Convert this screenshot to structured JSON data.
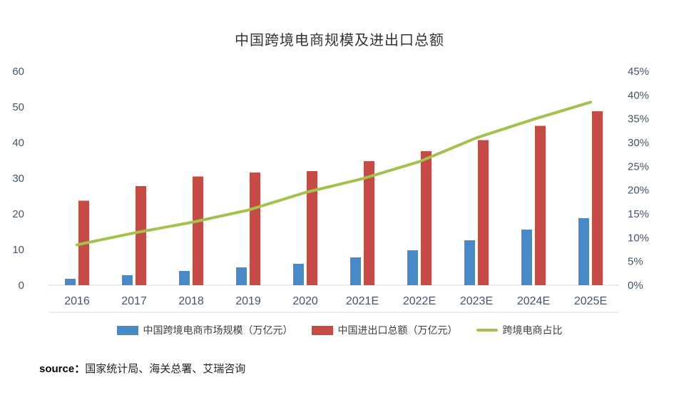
{
  "chart_data": {
    "type": "bar",
    "subtype": "combo-bar-line",
    "title": "中国跨境电商规模及进出口总额",
    "categories": [
      "2016",
      "2017",
      "2018",
      "2019",
      "2020",
      "2021E",
      "2022E",
      "2023E",
      "2024E",
      "2025E"
    ],
    "series": [
      {
        "name": "中国跨境电商市场规模（万亿元）",
        "type": "bar",
        "axis": "left",
        "color": "#4a89c7",
        "values": [
          1.8,
          2.8,
          4.0,
          5.0,
          6.0,
          7.8,
          9.8,
          12.6,
          15.6,
          18.8
        ]
      },
      {
        "name": "中国进出口总额（万亿元）",
        "type": "bar",
        "axis": "left",
        "color": "#c54b45",
        "values": [
          23.7,
          27.8,
          30.5,
          31.6,
          32.0,
          34.8,
          37.6,
          40.7,
          44.7,
          48.8
        ]
      },
      {
        "name": "跨境电商占比",
        "type": "line",
        "axis": "right",
        "color": "#a3c14d",
        "values": [
          8.5,
          11.0,
          13.2,
          15.8,
          19.5,
          22.4,
          26.0,
          31.0,
          34.9,
          38.5
        ]
      }
    ],
    "left_axis": {
      "min": 0,
      "max": 60,
      "ticks": [
        0,
        10,
        20,
        30,
        40,
        50,
        60
      ]
    },
    "right_axis": {
      "min": 0,
      "max": 45,
      "ticks": [
        "0%",
        "5%",
        "10%",
        "15%",
        "20%",
        "25%",
        "30%",
        "35%",
        "40%",
        "45%"
      ]
    },
    "legend_position": "bottom",
    "grid": false,
    "axis_label_color": "#44546a",
    "axis_line_color": "#d9d9d9"
  },
  "source": {
    "label": "source：",
    "text": "国家统计局、海关总署、艾瑞咨询"
  }
}
